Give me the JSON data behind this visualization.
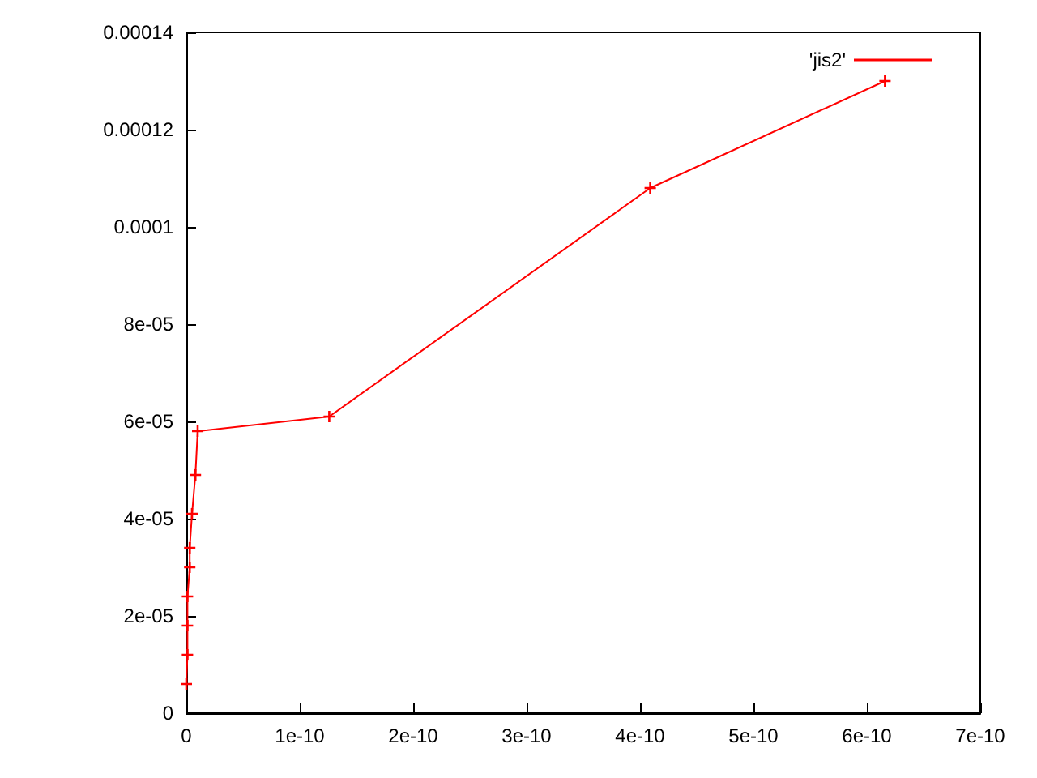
{
  "chart_data": {
    "type": "line",
    "marker": "cross",
    "legend": "top right",
    "grid": false,
    "xlim": [
      0,
      7e-10
    ],
    "ylim": [
      0,
      0.00014
    ],
    "xticks": [
      0,
      {
        "value": 1e-10,
        "label": "1e-10"
      },
      {
        "value": 2e-10,
        "label": "2e-10"
      },
      {
        "value": 3e-10,
        "label": "3e-10"
      },
      {
        "value": 4e-10,
        "label": "4e-10"
      },
      {
        "value": 5e-10,
        "label": "5e-10"
      },
      {
        "value": 6e-10,
        "label": "6e-10"
      },
      {
        "value": 7e-10,
        "label": "7e-10"
      }
    ],
    "yticks": [
      0,
      {
        "value": 2e-05,
        "label": "2e-05"
      },
      {
        "value": 4e-05,
        "label": "4e-05"
      },
      {
        "value": 6e-05,
        "label": "6e-05"
      },
      {
        "value": 8e-05,
        "label": "8e-05"
      },
      0.0001,
      0.00012,
      0.00014
    ],
    "series": [
      {
        "name": "'jis2'",
        "color": "#ff0000",
        "x": [
          0,
          1e-12,
          1e-12,
          1e-12,
          3e-12,
          3e-12,
          5e-12,
          8e-12,
          1e-11,
          1.26e-10,
          4.09e-10,
          6.16e-10
        ],
        "values": [
          6e-06,
          1.2e-05,
          1.8e-05,
          2.4e-05,
          3e-05,
          3.4e-05,
          4.1e-05,
          4.9e-05,
          5.8e-05,
          6.1e-05,
          0.000108,
          0.00013
        ]
      }
    ]
  }
}
